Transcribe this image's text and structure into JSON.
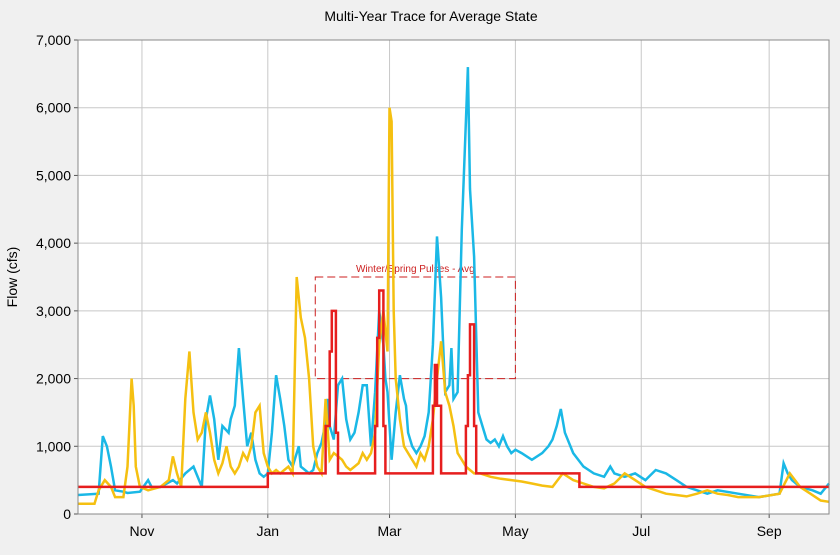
{
  "chart_data": {
    "type": "line",
    "title": "Multi-Year Trace for Average State",
    "xlabel": "",
    "ylabel": "Flow (cfs)",
    "ylim": [
      0,
      7000
    ],
    "xlim": [
      0,
      364
    ],
    "yticks": [
      0,
      1000,
      2000,
      3000,
      4000,
      5000,
      6000,
      7000
    ],
    "ytick_labels": [
      "0",
      "1,000",
      "2,000",
      "3,000",
      "4,000",
      "5,000",
      "6,000",
      "7,000"
    ],
    "xticks": [
      31,
      92,
      151,
      212,
      273,
      335
    ],
    "xtick_labels": [
      "Nov",
      "Jan",
      "Mar",
      "May",
      "Jul",
      "Sep"
    ],
    "grid": true,
    "colors": {
      "blue_trace": "#1ab8e6",
      "yellow_trace": "#f5c011",
      "red_trace": "#e61e1e",
      "annotation": "#cc1f1f",
      "grid": "#c8c8c8",
      "plot_bg": "#ffffff",
      "page_bg": "#f0f0f0"
    },
    "series": [
      {
        "key": "blue",
        "x": [
          0,
          10,
          12,
          14,
          16,
          18,
          22,
          24,
          30,
          34,
          36,
          40,
          46,
          48,
          52,
          56,
          60,
          62,
          64,
          66,
          68,
          70,
          73,
          74,
          76,
          78,
          80,
          82,
          84,
          86,
          88,
          90,
          92,
          94,
          96,
          98,
          100,
          102,
          104,
          107,
          108,
          110,
          112,
          114,
          116,
          118,
          120,
          121,
          122,
          124,
          126,
          128,
          130,
          132,
          134,
          136,
          138,
          140,
          142,
          144,
          146,
          148,
          149,
          150,
          152,
          154,
          156,
          158,
          159,
          160,
          162,
          164,
          166,
          168,
          170,
          172,
          174,
          176,
          178,
          180,
          181,
          182,
          184,
          186,
          188,
          189,
          190,
          192,
          194,
          196,
          198,
          200,
          202,
          204,
          206,
          208,
          210,
          212,
          215,
          220,
          225,
          228,
          230,
          232,
          234,
          236,
          240,
          245,
          250,
          255,
          258,
          260,
          265,
          270,
          275,
          280,
          285,
          290,
          295,
          300,
          305,
          310,
          320,
          330,
          340,
          342,
          344,
          346,
          350,
          356,
          360,
          364
        ],
        "y": [
          280,
          300,
          1150,
          1000,
          700,
          350,
          330,
          310,
          330,
          500,
          380,
          400,
          500,
          450,
          600,
          700,
          400,
          1400,
          1750,
          1400,
          800,
          1300,
          1200,
          1400,
          1600,
          2450,
          1700,
          1000,
          1200,
          800,
          600,
          550,
          600,
          1200,
          2050,
          1700,
          1300,
          800,
          700,
          1000,
          700,
          650,
          600,
          650,
          900,
          1050,
          1350,
          1700,
          1300,
          1100,
          1900,
          2000,
          1400,
          1100,
          1200,
          1500,
          1900,
          1900,
          1000,
          1800,
          3000,
          2500,
          2000,
          1800,
          800,
          1500,
          2050,
          1700,
          1600,
          1200,
          1000,
          900,
          1000,
          1150,
          1500,
          2500,
          4100,
          3200,
          1800,
          1900,
          2450,
          1700,
          1800,
          4200,
          5800,
          6600,
          4800,
          3800,
          1500,
          1300,
          1100,
          1050,
          1100,
          1000,
          1150,
          1000,
          900,
          950,
          900,
          800,
          900,
          1000,
          1100,
          1300,
          1550,
          1200,
          900,
          700,
          600,
          550,
          700,
          600,
          550,
          600,
          500,
          650,
          600,
          500,
          400,
          350,
          300,
          350,
          300,
          250,
          300,
          750,
          600,
          500,
          400,
          350,
          300,
          450
        ]
      },
      {
        "key": "yellow",
        "x": [
          0,
          8,
          10,
          13,
          16,
          18,
          22,
          24,
          26,
          27,
          28,
          30,
          34,
          40,
          44,
          46,
          48,
          50,
          52,
          54,
          56,
          58,
          60,
          62,
          64,
          66,
          68,
          70,
          72,
          74,
          76,
          78,
          80,
          82,
          84,
          86,
          88,
          90,
          92,
          94,
          96,
          98,
          100,
          102,
          104,
          106,
          108,
          110,
          112,
          114,
          116,
          118,
          120,
          122,
          124,
          126,
          128,
          130,
          132,
          134,
          136,
          138,
          140,
          142,
          144,
          146,
          148,
          150,
          151,
          152,
          153,
          154,
          156,
          158,
          160,
          162,
          164,
          166,
          168,
          170,
          172,
          174,
          176,
          178,
          180,
          182,
          184,
          186,
          188,
          190,
          192,
          195,
          200,
          205,
          210,
          215,
          220,
          225,
          230,
          235,
          240,
          245,
          250,
          255,
          260,
          265,
          270,
          275,
          280,
          285,
          290,
          295,
          300,
          305,
          310,
          315,
          320,
          330,
          340,
          345,
          350,
          355,
          360,
          364
        ],
        "y": [
          150,
          150,
          350,
          500,
          400,
          250,
          250,
          700,
          2000,
          1600,
          700,
          400,
          350,
          400,
          500,
          850,
          600,
          400,
          1700,
          2400,
          1500,
          1100,
          1200,
          1500,
          1200,
          800,
          600,
          750,
          1000,
          700,
          600,
          700,
          900,
          800,
          1000,
          1500,
          1600,
          900,
          700,
          600,
          650,
          600,
          650,
          700,
          600,
          3500,
          2900,
          2600,
          2000,
          1000,
          700,
          600,
          1700,
          800,
          900,
          850,
          800,
          700,
          650,
          700,
          750,
          900,
          800,
          900,
          1200,
          2500,
          3000,
          2400,
          6000,
          5800,
          3000,
          2000,
          1400,
          1000,
          900,
          800,
          700,
          900,
          800,
          1000,
          1400,
          2000,
          2550,
          1800,
          1600,
          1300,
          900,
          800,
          700,
          650,
          600,
          600,
          550,
          520,
          500,
          480,
          450,
          420,
          400,
          600,
          500,
          450,
          400,
          380,
          450,
          600,
          500,
          400,
          350,
          300,
          280,
          260,
          300,
          350,
          300,
          280,
          250,
          250,
          300,
          600,
          400,
          300,
          200,
          180
        ]
      },
      {
        "key": "red",
        "x": [
          0,
          92,
          92,
          120,
          120,
          122,
          122,
          123,
          123,
          125,
          125,
          126,
          126,
          144,
          144,
          145,
          145,
          146,
          146,
          148,
          148,
          149,
          149,
          172,
          172,
          173,
          173,
          174,
          174,
          176,
          176,
          177,
          177,
          188,
          188,
          189,
          189,
          190,
          190,
          192,
          192,
          193,
          193,
          243,
          243,
          364
        ],
        "y": [
          400,
          400,
          600,
          600,
          1300,
          1300,
          2400,
          2400,
          3000,
          3000,
          1200,
          1200,
          600,
          600,
          1300,
          1300,
          2600,
          2600,
          3300,
          3300,
          1300,
          1300,
          600,
          600,
          1600,
          1600,
          2200,
          2200,
          1600,
          1600,
          600,
          600,
          600,
          600,
          1300,
          1300,
          2050,
          2050,
          2800,
          2800,
          1300,
          1300,
          600,
          600,
          400,
          400
        ]
      }
    ],
    "annotations": [
      {
        "text": "Winter/Spring Pulses - Avg",
        "x0": 115,
        "x1": 212,
        "y0": 2000,
        "y1": 3500
      }
    ]
  }
}
